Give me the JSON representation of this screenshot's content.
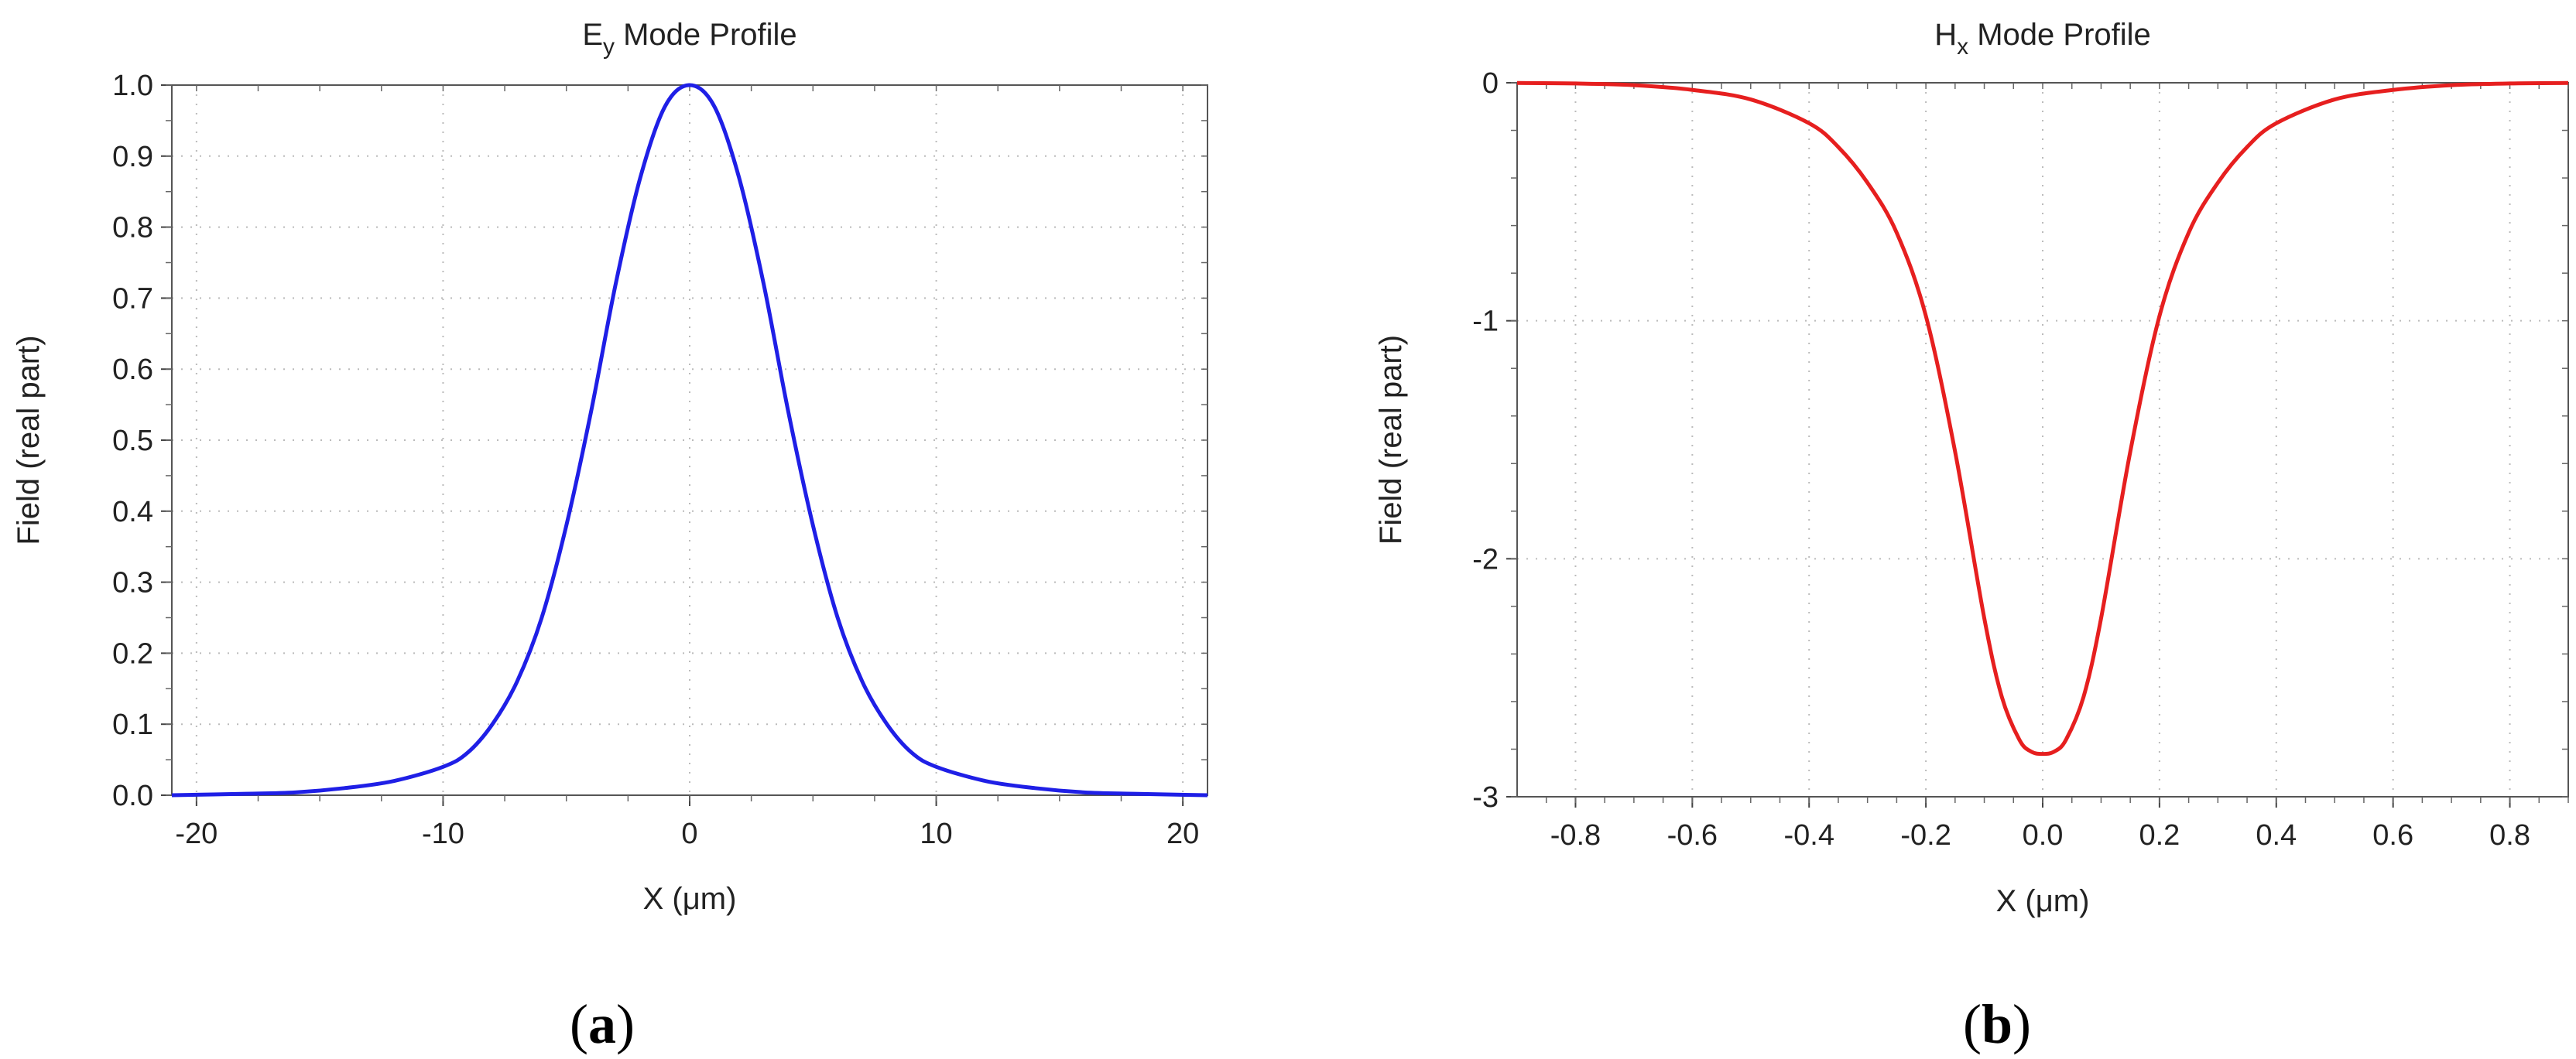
{
  "chart_data": [
    {
      "type": "line",
      "panel_label": "a",
      "title": {
        "main": "E",
        "sub": "y",
        "rest": " Mode Profile"
      },
      "xlabel": "X (μm)",
      "ylabel": "Field (real part)",
      "xlim": [
        -21,
        21
      ],
      "ylim": [
        0,
        1
      ],
      "xticks": [
        -20,
        -10,
        0,
        10,
        20
      ],
      "yticks": [
        0,
        0.1,
        0.2,
        0.3,
        0.4,
        0.5,
        0.6,
        0.7,
        0.8,
        0.9,
        1.0
      ],
      "xtick_labels": [
        "-20",
        "-10",
        "0",
        "10",
        "20"
      ],
      "ytick_labels": [
        "0.0",
        "0.1",
        "0.2",
        "0.3",
        "0.4",
        "0.5",
        "0.6",
        "0.7",
        "0.8",
        "0.9",
        "1.0"
      ],
      "grid": true,
      "series": [
        {
          "color": "#1f1fe6",
          "x": [
            -21,
            -18,
            -16,
            -14,
            -12,
            -10,
            -9,
            -8,
            -7,
            -6,
            -5,
            -4,
            -3,
            -2,
            -1,
            0,
            1,
            2,
            3,
            4,
            5,
            6,
            7,
            8,
            9,
            10,
            12,
            14,
            16,
            18,
            21
          ],
          "y": [
            0.0,
            0.002,
            0.004,
            0.01,
            0.02,
            0.04,
            0.06,
            0.1,
            0.16,
            0.25,
            0.38,
            0.54,
            0.72,
            0.87,
            0.97,
            1.0,
            0.97,
            0.87,
            0.72,
            0.54,
            0.38,
            0.25,
            0.16,
            0.1,
            0.06,
            0.04,
            0.02,
            0.01,
            0.004,
            0.002,
            0.0
          ]
        }
      ]
    },
    {
      "type": "line",
      "panel_label": "b",
      "title": {
        "main": "H",
        "sub": "x",
        "rest": " Mode Profile"
      },
      "xlabel": "X (μm)",
      "ylabel": "Field (real part)",
      "xlim": [
        -0.9,
        0.9
      ],
      "ylim": [
        -3,
        0
      ],
      "xticks": [
        -0.8,
        -0.6,
        -0.4,
        -0.2,
        0.0,
        0.2,
        0.4,
        0.6,
        0.8
      ],
      "yticks": [
        -3,
        -2,
        -1,
        0
      ],
      "xtick_labels": [
        "-0.8",
        "-0.6",
        "-0.4",
        "-0.2",
        "0.0",
        "0.2",
        "0.4",
        "0.6",
        "0.8"
      ],
      "ytick_labels": [
        "-3",
        "-2",
        "-1",
        "0"
      ],
      "grid": true,
      "series": [
        {
          "color": "#e61f1f",
          "x": [
            -0.9,
            -0.8,
            -0.7,
            -0.6,
            -0.5,
            -0.4,
            -0.35,
            -0.3,
            -0.25,
            -0.2,
            -0.15,
            -0.1,
            -0.07,
            -0.04,
            -0.02,
            0.0,
            0.02,
            0.04,
            0.07,
            0.1,
            0.15,
            0.2,
            0.25,
            0.3,
            0.35,
            0.4,
            0.5,
            0.6,
            0.7,
            0.8,
            0.9
          ],
          "y": [
            -0.001,
            -0.003,
            -0.01,
            -0.03,
            -0.07,
            -0.17,
            -0.27,
            -0.42,
            -0.63,
            -0.98,
            -1.55,
            -2.25,
            -2.58,
            -2.76,
            -2.81,
            -2.82,
            -2.81,
            -2.76,
            -2.58,
            -2.25,
            -1.55,
            -0.98,
            -0.63,
            -0.42,
            -0.27,
            -0.17,
            -0.07,
            -0.03,
            -0.01,
            -0.003,
            -0.001
          ]
        }
      ]
    }
  ]
}
